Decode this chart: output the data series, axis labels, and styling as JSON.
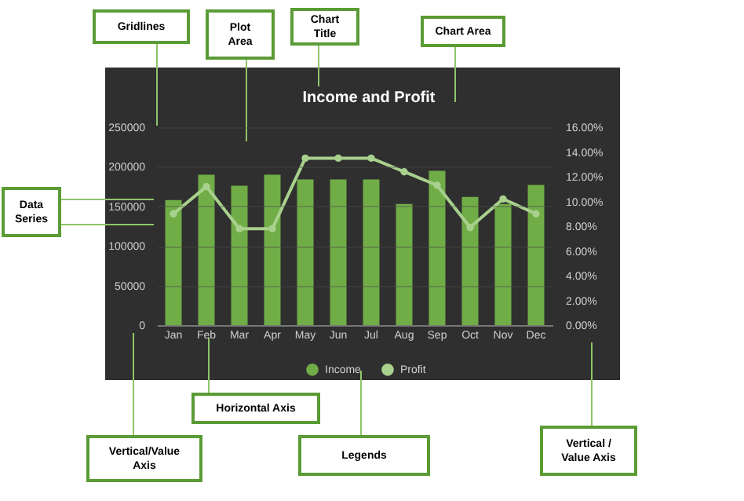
{
  "chart_data": {
    "type": "bar",
    "title": "Income and Profit",
    "categories": [
      "Jan",
      "Feb",
      "Mar",
      "Apr",
      "May",
      "Jun",
      "Jul",
      "Aug",
      "Sep",
      "Oct",
      "Nov",
      "Dec"
    ],
    "series": [
      {
        "name": "Income",
        "color": "#70ad47",
        "values": [
          158000,
          190000,
          176000,
          190000,
          184000,
          184000,
          184000,
          153000,
          195000,
          162000,
          153000,
          177000
        ]
      },
      {
        "name": "Profit",
        "type": "line",
        "axis": "y2",
        "color": "#a9d18e",
        "marker": "circle",
        "values": [
          9.0,
          11.2,
          7.8,
          7.8,
          13.5,
          13.5,
          13.5,
          12.4,
          11.3,
          7.9,
          10.2,
          9.0
        ]
      }
    ],
    "ylim": [
      0,
      250000
    ],
    "yticks": [
      0,
      50000,
      100000,
      150000,
      200000,
      250000
    ],
    "y2lim": [
      0,
      16
    ],
    "y2ticks": [
      {
        "value": 0,
        "label": "0.00%"
      },
      {
        "value": 2,
        "label": "2.00%"
      },
      {
        "value": 4,
        "label": "4.00%"
      },
      {
        "value": 6,
        "label": "6.00%"
      },
      {
        "value": 8,
        "label": "8.00%"
      },
      {
        "value": 10,
        "label": "10.00%"
      },
      {
        "value": 12,
        "label": "12.00%"
      },
      {
        "value": 14,
        "label": "14.00%"
      },
      {
        "value": 16,
        "label": "16.00%"
      }
    ],
    "grid": "y",
    "legend": "bottom",
    "annotations": [
      "Gridlines",
      "Plot Area",
      "Chart Title",
      "Chart Area",
      "Data Series",
      "Horizontal Axis",
      "Vertical/Value Axis",
      "Legends",
      "Vertical / Value Axis"
    ]
  }
}
